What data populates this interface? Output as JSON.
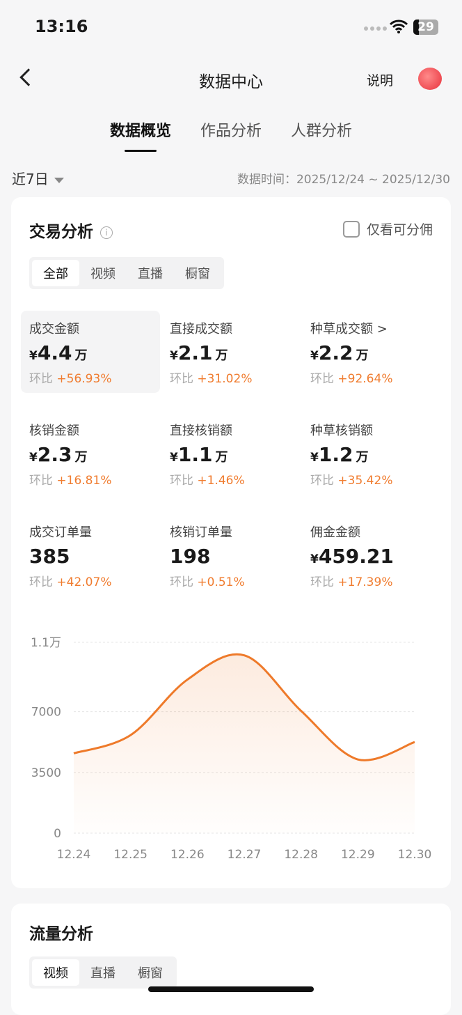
{
  "status": {
    "time": "13:16",
    "battery": "29"
  },
  "nav": {
    "title": "数据中心",
    "help": "说明"
  },
  "tabs": [
    "数据概览",
    "作品分析",
    "人群分析"
  ],
  "filter": {
    "range": "近7日",
    "data_time": "数据时间：2025/12/24 ~ 2025/12/30"
  },
  "trade": {
    "title": "交易分析",
    "info_icon": "info-icon",
    "checkbox_label": "仅看可分佣",
    "segments": [
      "全部",
      "视频",
      "直播",
      "橱窗"
    ],
    "metrics": [
      {
        "label": "成交金额",
        "value": "4.4",
        "unit": "万",
        "currency": "¥",
        "change_label": "环比",
        "change": "+56.93%"
      },
      {
        "label": "直接成交额",
        "value": "2.1",
        "unit": "万",
        "currency": "¥",
        "change_label": "环比",
        "change": "+31.02%"
      },
      {
        "label": "种草成交额 >",
        "value": "2.2",
        "unit": "万",
        "currency": "¥",
        "change_label": "环比",
        "change": "+92.64%"
      },
      {
        "label": "核销金额",
        "value": "2.3",
        "unit": "万",
        "currency": "¥",
        "change_label": "环比",
        "change": "+16.81%"
      },
      {
        "label": "直接核销额",
        "value": "1.1",
        "unit": "万",
        "currency": "¥",
        "change_label": "环比",
        "change": "+1.46%"
      },
      {
        "label": "种草核销额",
        "value": "1.2",
        "unit": "万",
        "currency": "¥",
        "change_label": "环比",
        "change": "+35.42%"
      },
      {
        "label": "成交订单量",
        "value": "385",
        "unit": "",
        "currency": "",
        "change_label": "环比",
        "change": "+42.07%"
      },
      {
        "label": "核销订单量",
        "value": "198",
        "unit": "",
        "currency": "",
        "change_label": "环比",
        "change": "+0.51%"
      },
      {
        "label": "佣金金额",
        "value": "459.21",
        "unit": "",
        "currency": "¥",
        "change_label": "环比",
        "change": "+17.39%"
      }
    ]
  },
  "chart_data": {
    "type": "area",
    "categories": [
      "12.24",
      "12.25",
      "12.26",
      "12.27",
      "12.28",
      "12.29",
      "12.30"
    ],
    "values": [
      4600,
      5650,
      8850,
      10250,
      7050,
      4250,
      5250
    ],
    "yticks": [
      0,
      3500,
      7000,
      11000
    ],
    "ytick_labels": [
      "0",
      "3500",
      "7000",
      "1.1万"
    ],
    "ylim": [
      0,
      11000
    ],
    "grid": true,
    "color": "#ee7a2a"
  },
  "traffic": {
    "title": "流量分析",
    "segments": [
      "视频",
      "直播",
      "橱窗"
    ]
  }
}
